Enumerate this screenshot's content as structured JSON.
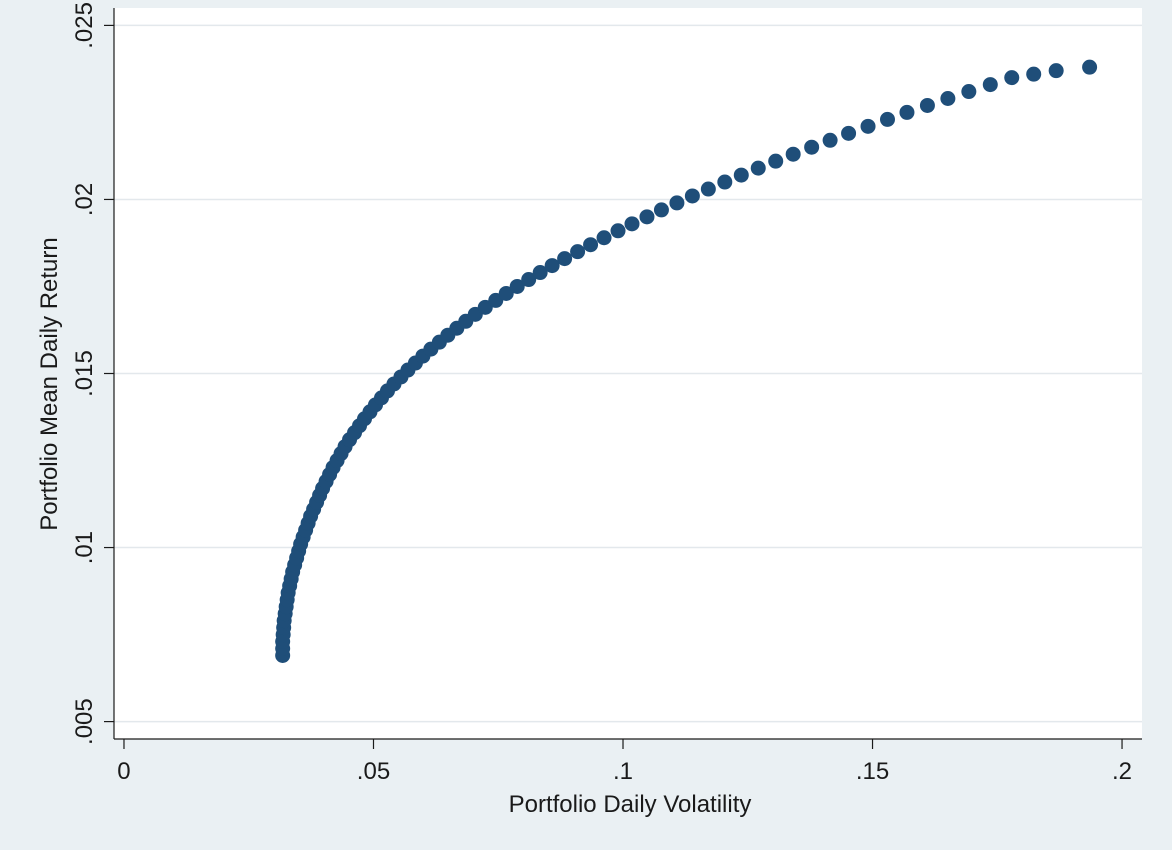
{
  "chart_data": {
    "type": "scatter",
    "title": "",
    "xlabel": "Portfolio Daily Volatility",
    "ylabel": "Portfolio Mean Daily Return",
    "xlim": [
      -0.002,
      0.204
    ],
    "ylim": [
      0.0045,
      0.0255
    ],
    "xticks": [
      0,
      0.05,
      0.1,
      0.15,
      0.2
    ],
    "xtick_labels": [
      "0",
      ".05",
      ".1",
      ".15",
      ".2"
    ],
    "yticks": [
      0.005,
      0.01,
      0.015,
      0.02,
      0.025
    ],
    "ytick_labels": [
      ".005",
      ".01",
      ".015",
      ".02",
      ".025"
    ],
    "grid": true,
    "marker_color": "#1f4e79",
    "plot_background": "#ffffff",
    "figure_background": "#eaf0f3",
    "series": [
      {
        "points": [
          [
            0.0318,
            0.0069
          ],
          [
            0.0318,
            0.0071
          ],
          [
            0.0318,
            0.0073
          ],
          [
            0.0319,
            0.0075
          ],
          [
            0.032,
            0.0077
          ],
          [
            0.0321,
            0.0079
          ],
          [
            0.0323,
            0.0081
          ],
          [
            0.0325,
            0.0083
          ],
          [
            0.0327,
            0.0085
          ],
          [
            0.0329,
            0.0087
          ],
          [
            0.0332,
            0.0089
          ],
          [
            0.0335,
            0.0091
          ],
          [
            0.0338,
            0.0093
          ],
          [
            0.0342,
            0.0095
          ],
          [
            0.0346,
            0.0097
          ],
          [
            0.035,
            0.0099
          ],
          [
            0.0354,
            0.0101
          ],
          [
            0.0359,
            0.0103
          ],
          [
            0.0364,
            0.0105
          ],
          [
            0.0369,
            0.0107
          ],
          [
            0.0374,
            0.0109
          ],
          [
            0.038,
            0.0111
          ],
          [
            0.0386,
            0.0113
          ],
          [
            0.0392,
            0.0115
          ],
          [
            0.0398,
            0.0117
          ],
          [
            0.0405,
            0.0119
          ],
          [
            0.0412,
            0.0121
          ],
          [
            0.0419,
            0.0123
          ],
          [
            0.0427,
            0.0125
          ],
          [
            0.0435,
            0.0127
          ],
          [
            0.0443,
            0.0129
          ],
          [
            0.0452,
            0.0131
          ],
          [
            0.0462,
            0.0133
          ],
          [
            0.0472,
            0.0135
          ],
          [
            0.0482,
            0.0137
          ],
          [
            0.0493,
            0.0139
          ],
          [
            0.0504,
            0.0141
          ],
          [
            0.0516,
            0.0143
          ],
          [
            0.0528,
            0.0145
          ],
          [
            0.0541,
            0.0147
          ],
          [
            0.0555,
            0.0149
          ],
          [
            0.0569,
            0.0151
          ],
          [
            0.0584,
            0.0153
          ],
          [
            0.0599,
            0.0155
          ],
          [
            0.0615,
            0.0157
          ],
          [
            0.0632,
            0.0159
          ],
          [
            0.0649,
            0.0161
          ],
          [
            0.0667,
            0.0163
          ],
          [
            0.0685,
            0.0165
          ],
          [
            0.0704,
            0.0167
          ],
          [
            0.0724,
            0.0169
          ],
          [
            0.0745,
            0.0171
          ],
          [
            0.0766,
            0.0173
          ],
          [
            0.0788,
            0.0175
          ],
          [
            0.0811,
            0.0177
          ],
          [
            0.0834,
            0.0179
          ],
          [
            0.0858,
            0.0181
          ],
          [
            0.0883,
            0.0183
          ],
          [
            0.0909,
            0.0185
          ],
          [
            0.0935,
            0.0187
          ],
          [
            0.0962,
            0.0189
          ],
          [
            0.099,
            0.0191
          ],
          [
            0.1018,
            0.0193
          ],
          [
            0.1048,
            0.0195
          ],
          [
            0.1077,
            0.0197
          ],
          [
            0.1108,
            0.0199
          ],
          [
            0.1139,
            0.0201
          ],
          [
            0.1171,
            0.0203
          ],
          [
            0.1204,
            0.0205
          ],
          [
            0.1237,
            0.0207
          ],
          [
            0.1271,
            0.0209
          ],
          [
            0.1306,
            0.0211
          ],
          [
            0.1341,
            0.0213
          ],
          [
            0.1378,
            0.0215
          ],
          [
            0.1415,
            0.0217
          ],
          [
            0.1452,
            0.0219
          ],
          [
            0.1491,
            0.0221
          ],
          [
            0.153,
            0.0223
          ],
          [
            0.1569,
            0.0225
          ],
          [
            0.161,
            0.0227
          ],
          [
            0.1651,
            0.0229
          ],
          [
            0.1693,
            0.0231
          ],
          [
            0.1736,
            0.0233
          ],
          [
            0.1779,
            0.0235
          ],
          [
            0.1823,
            0.0236
          ],
          [
            0.1868,
            0.0237
          ],
          [
            0.1935,
            0.0238
          ]
        ]
      }
    ]
  }
}
